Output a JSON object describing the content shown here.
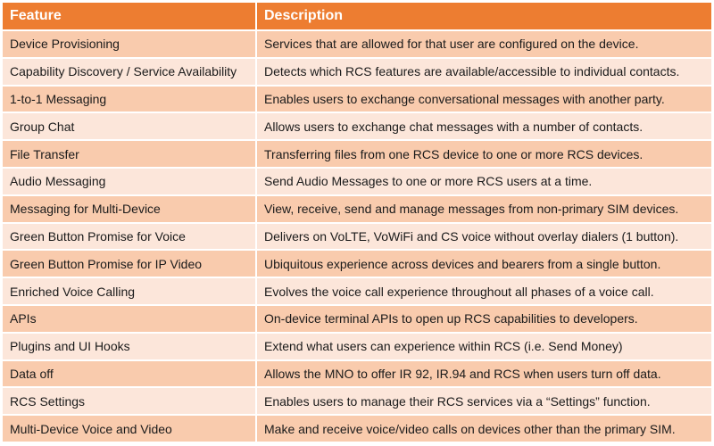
{
  "header": {
    "feature": "Feature",
    "description": "Description"
  },
  "rows": [
    {
      "feature": "Device Provisioning",
      "description": "Services that are allowed for that user are configured on the device."
    },
    {
      "feature": "Capability Discovery / Service Availability",
      "description": "Detects which RCS features are available/accessible to individual contacts."
    },
    {
      "feature": "1-to-1 Messaging",
      "description": "Enables users to exchange conversational messages with another party."
    },
    {
      "feature": "Group Chat",
      "description": "Allows users to exchange chat messages with a number of contacts."
    },
    {
      "feature": "File Transfer",
      "description": "Transferring files from one RCS device to one or more RCS devices."
    },
    {
      "feature": "Audio Messaging",
      "description": "Send Audio Messages to one or more RCS users at a time."
    },
    {
      "feature": "Messaging for Multi-Device",
      "description": "View, receive, send and manage messages from non-primary SIM devices."
    },
    {
      "feature": "Green Button Promise for Voice",
      "description": "Delivers on VoLTE, VoWiFi and CS voice without overlay dialers (1 button)."
    },
    {
      "feature": "Green Button Promise for IP Video",
      "description": "Ubiquitous experience across devices and bearers from a single button."
    },
    {
      "feature": "Enriched Voice Calling",
      "description": "Evolves the voice call experience throughout all phases of a voice call."
    },
    {
      "feature": "APIs",
      "description": "On-device terminal APIs to open up RCS capabilities to developers."
    },
    {
      "feature": "Plugins and UI Hooks",
      "description": "Extend what users can experience within RCS (i.e. Send Money)"
    },
    {
      "feature": "Data off",
      "description": "Allows the MNO to offer IR 92, IR.94 and RCS when users turn off data."
    },
    {
      "feature": "RCS Settings",
      "description": "Enables users to manage their RCS services via a “Settings” function."
    },
    {
      "feature": "Multi-Device Voice and Video",
      "description": "Make and receive voice/video calls on devices other than the primary SIM."
    }
  ],
  "colors": {
    "header_bg": "#ED7D31",
    "row_dark": "#F9CBAD",
    "row_light": "#FCE6DA"
  }
}
